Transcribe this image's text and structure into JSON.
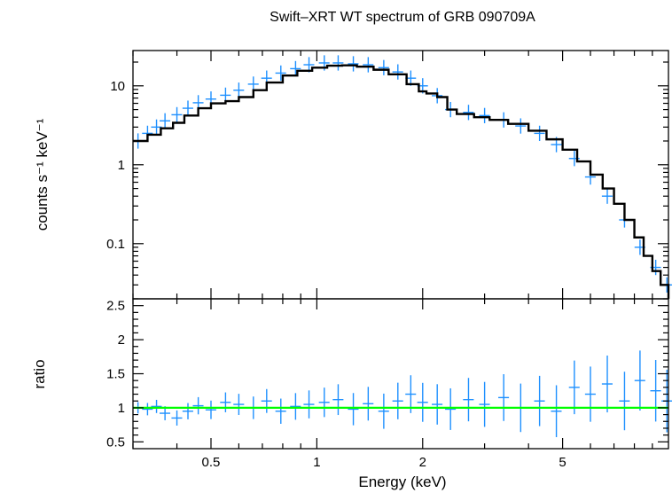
{
  "chart_data": [
    {
      "panel": "spectrum",
      "type": "scatter",
      "title": "Swift–XRT WT spectrum of GRB 090709A",
      "xlabel": "",
      "ylabel": "counts s⁻¹ keV⁻¹",
      "xscale": "log",
      "yscale": "log",
      "xlim": [
        0.3,
        10
      ],
      "ylim": [
        0.02,
        28
      ],
      "x_tick_labels": [
        "0.5",
        "1",
        "2",
        "5"
      ],
      "y_tick_labels": [
        "10",
        "1",
        "0.1"
      ],
      "series": [
        {
          "style": "data-points-with-errorbars",
          "color": "#1e90ff",
          "x": [
            0.31,
            0.33,
            0.35,
            0.37,
            0.4,
            0.43,
            0.46,
            0.5,
            0.55,
            0.6,
            0.66,
            0.72,
            0.79,
            0.87,
            0.95,
            1.05,
            1.15,
            1.27,
            1.4,
            1.55,
            1.7,
            1.85,
            2.0,
            2.2,
            2.4,
            2.7,
            3.0,
            3.4,
            3.8,
            4.3,
            4.8,
            5.4,
            6.0,
            6.7,
            7.5,
            8.3,
            9.2,
            9.9
          ],
          "y": [
            2.0,
            2.5,
            3.0,
            3.6,
            4.3,
            5.2,
            6.1,
            6.8,
            7.6,
            8.8,
            10.5,
            12.5,
            14.5,
            16.5,
            18.5,
            19.5,
            19.5,
            19.0,
            18.5,
            17.0,
            15.0,
            12.5,
            10.0,
            7.5,
            5.0,
            4.6,
            4.2,
            3.7,
            3.1,
            2.5,
            1.8,
            1.2,
            0.7,
            0.4,
            0.2,
            0.09,
            0.05,
            0.03
          ]
        },
        {
          "style": "model-step-line",
          "color": "#000000",
          "x": [
            0.3,
            0.33,
            0.36,
            0.39,
            0.42,
            0.46,
            0.5,
            0.55,
            0.6,
            0.66,
            0.72,
            0.8,
            0.88,
            0.97,
            1.07,
            1.18,
            1.3,
            1.45,
            1.6,
            1.8,
            1.95,
            2.05,
            2.2,
            2.35,
            2.5,
            2.8,
            3.1,
            3.5,
            4.0,
            4.5,
            5.0,
            5.5,
            6.0,
            6.5,
            7.0,
            7.5,
            8.0,
            8.5,
            9.0,
            9.5,
            10.0
          ],
          "y": [
            2.0,
            2.4,
            2.9,
            3.4,
            4.2,
            5.2,
            6.0,
            6.4,
            7.2,
            8.8,
            11.0,
            13.5,
            15.5,
            17.0,
            18.0,
            18.2,
            17.5,
            16.0,
            14.0,
            10.5,
            8.5,
            8.0,
            7.2,
            5.0,
            4.4,
            4.0,
            3.7,
            3.3,
            2.7,
            2.1,
            1.55,
            1.1,
            0.75,
            0.5,
            0.32,
            0.2,
            0.12,
            0.07,
            0.045,
            0.03,
            0.02
          ]
        }
      ]
    },
    {
      "panel": "residuals",
      "type": "scatter",
      "title": "",
      "xlabel": "Energy (keV)",
      "ylabel": "ratio",
      "xscale": "log",
      "yscale": "linear",
      "xlim": [
        0.3,
        10
      ],
      "ylim": [
        0.4,
        2.6
      ],
      "y_tick_labels": [
        "0.5",
        "1",
        "1.5",
        "2",
        "2.5"
      ],
      "reference_line": {
        "y": 1,
        "color": "#00ff00"
      },
      "series": [
        {
          "style": "data-points-with-errorbars",
          "color": "#1e90ff",
          "x": [
            0.31,
            0.33,
            0.35,
            0.37,
            0.4,
            0.43,
            0.46,
            0.5,
            0.55,
            0.6,
            0.66,
            0.72,
            0.79,
            0.87,
            0.95,
            1.05,
            1.15,
            1.27,
            1.4,
            1.55,
            1.7,
            1.85,
            2.0,
            2.2,
            2.4,
            2.7,
            3.0,
            3.4,
            3.8,
            4.3,
            4.8,
            5.4,
            6.0,
            6.7,
            7.5,
            8.3,
            9.2,
            9.9
          ],
          "y": [
            1.0,
            0.98,
            1.02,
            0.92,
            0.85,
            0.95,
            1.03,
            0.97,
            1.08,
            1.05,
            1.0,
            1.1,
            0.95,
            1.02,
            1.05,
            1.08,
            1.12,
            0.98,
            1.06,
            0.95,
            1.1,
            1.2,
            1.08,
            1.05,
            0.98,
            1.12,
            1.05,
            1.15,
            1.0,
            1.1,
            0.95,
            1.3,
            1.2,
            1.35,
            1.1,
            1.4,
            1.25,
            1.1
          ]
        }
      ]
    }
  ]
}
